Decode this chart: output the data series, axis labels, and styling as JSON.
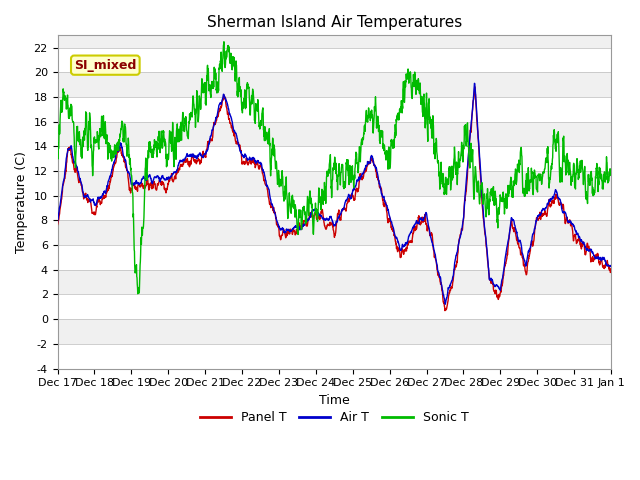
{
  "title": "Sherman Island Air Temperatures",
  "xlabel": "Time",
  "ylabel": "Temperature (C)",
  "ylim": [
    -4,
    23
  ],
  "yticks": [
    -4,
    -2,
    0,
    2,
    4,
    6,
    8,
    10,
    12,
    14,
    16,
    18,
    20,
    22
  ],
  "background_color": "#ffffff",
  "plot_bg_light": "#f0f0f0",
  "plot_bg_dark": "#e0e0e0",
  "legend_labels": [
    "Panel T",
    "Air T",
    "Sonic T"
  ],
  "legend_colors": [
    "#cc0000",
    "#0000cc",
    "#00bb00"
  ],
  "annotation_text": "SI_mixed",
  "annotation_color": "#8b0000",
  "annotation_bg": "#ffffcc",
  "annotation_edge": "#cccc00",
  "x_tick_labels": [
    "Dec 17",
    "Dec 18",
    "Dec 19",
    "Dec 20",
    "Dec 21",
    "Dec 22",
    "Dec 23",
    "Dec 24",
    "Dec 25",
    "Dec 26",
    "Dec 27",
    "Dec 28",
    "Dec 29",
    "Dec 30",
    "Dec 31",
    "Jan 1"
  ],
  "line_width": 1.0,
  "title_fontsize": 11,
  "axis_fontsize": 9,
  "tick_fontsize": 8,
  "legend_fontsize": 9,
  "figwidth": 6.4,
  "figheight": 4.8,
  "dpi": 100
}
